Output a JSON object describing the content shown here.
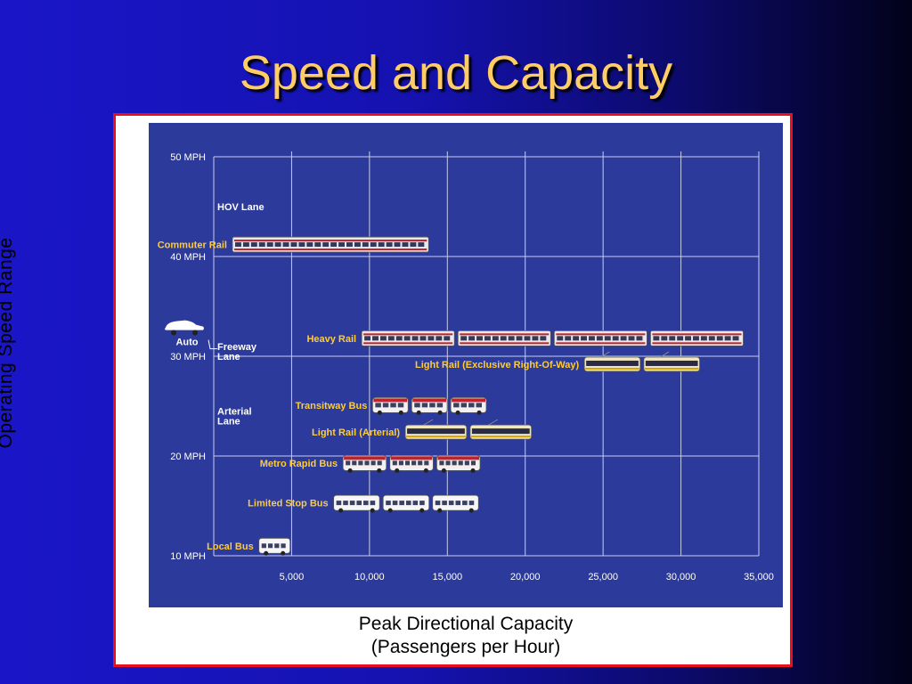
{
  "slide": {
    "title": "Speed and Capacity"
  },
  "colors": {
    "plot_background": "#2b3a9b",
    "frame_border": "#e8101e",
    "mode_label": "#ffcc33",
    "lane_label": "#ffffff",
    "grid": "#c8cde8"
  },
  "chart_data": {
    "type": "range-bar",
    "ylabel": "Operating Speed Range",
    "xlabel_line1": "Peak Directional Capacity",
    "xlabel_line2": "(Passengers per Hour)",
    "xlim": [
      0,
      35000
    ],
    "ylim": [
      10,
      50
    ],
    "x_ticks": [
      {
        "value": 5000,
        "label": "5,000"
      },
      {
        "value": 10000,
        "label": "10,000"
      },
      {
        "value": 15000,
        "label": "15,000"
      },
      {
        "value": 20000,
        "label": "20,000"
      },
      {
        "value": 25000,
        "label": "25,000"
      },
      {
        "value": 30000,
        "label": "30,000"
      },
      {
        "value": 35000,
        "label": "35,000"
      }
    ],
    "y_ticks": [
      {
        "value": 10,
        "label": "10 MPH"
      },
      {
        "value": 20,
        "label": "20 MPH"
      },
      {
        "value": 30,
        "label": "30 MPH"
      },
      {
        "value": 40,
        "label": "40 MPH"
      },
      {
        "value": 50,
        "label": "50 MPH"
      }
    ],
    "lane_labels": [
      {
        "lines": [
          "HOV Lane"
        ],
        "speed": 45
      },
      {
        "lines": [
          "Freeway",
          "Lane"
        ],
        "speed": 31
      },
      {
        "lines": [
          "Arterial",
          "Lane"
        ],
        "speed": 24.5
      }
    ],
    "auto": {
      "label": "Auto",
      "speed": 32
    },
    "modes": [
      {
        "name": "Commuter Rail",
        "speed": 41.2,
        "capacity_min": 1200,
        "capacity_max": 13800,
        "vehicle": "train",
        "units": 1
      },
      {
        "name": "Heavy Rail",
        "speed": 31.8,
        "capacity_min": 9500,
        "capacity_max": 34000,
        "vehicle": "train",
        "units": 4
      },
      {
        "name": "Light Rail (Exclusive Right-Of-Way)",
        "speed": 29.2,
        "capacity_min": 23800,
        "capacity_max": 31200,
        "vehicle": "lrt",
        "units": 2
      },
      {
        "name": "Transitway Bus",
        "speed": 25.1,
        "capacity_min": 10200,
        "capacity_max": 17500,
        "vehicle": "bus-red",
        "units": 3
      },
      {
        "name": "Light Rail (Arterial)",
        "speed": 22.4,
        "capacity_min": 12300,
        "capacity_max": 20400,
        "vehicle": "lrt",
        "units": 2
      },
      {
        "name": "Metro Rapid Bus",
        "speed": 19.3,
        "capacity_min": 8300,
        "capacity_max": 17100,
        "vehicle": "bus-red",
        "units": 3
      },
      {
        "name": "Limited Stop Bus",
        "speed": 15.3,
        "capacity_min": 7700,
        "capacity_max": 17000,
        "vehicle": "bus-white",
        "units": 3
      },
      {
        "name": "Local Bus",
        "speed": 11.0,
        "capacity_min": 2900,
        "capacity_max": 4900,
        "vehicle": "bus-white",
        "units": 1
      }
    ]
  }
}
